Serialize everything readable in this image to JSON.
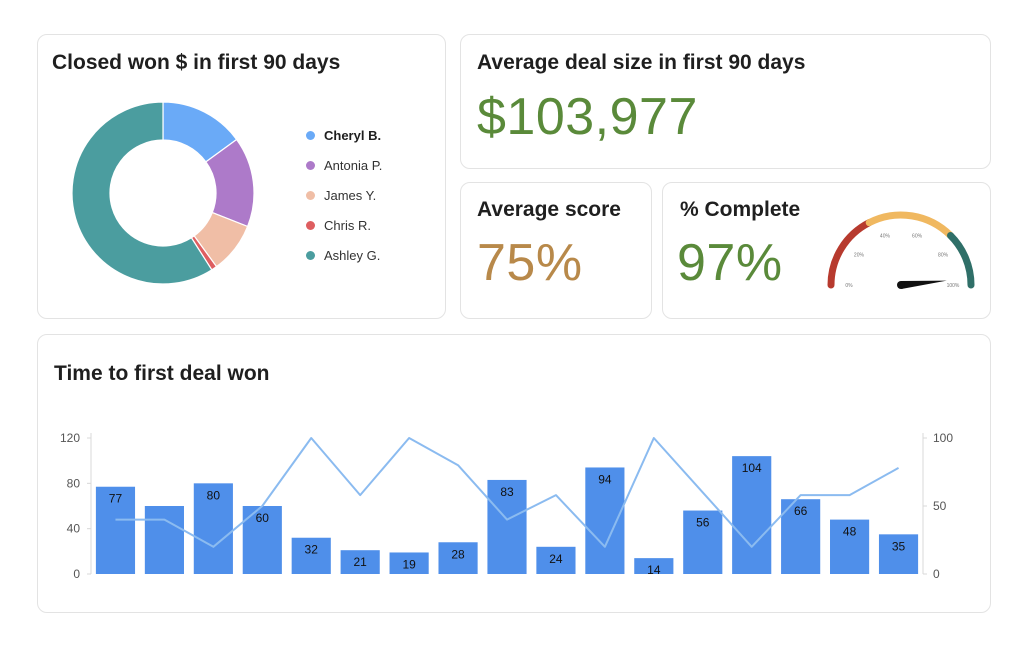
{
  "pie_card": {
    "title": "Closed won $ in first 90 days"
  },
  "avg_card": {
    "title": "Average deal size in first 90 days",
    "value": "$103,977",
    "color": "#5a8a3a"
  },
  "score_card": {
    "title": "Average score",
    "value": "75%",
    "color": "#b8894a"
  },
  "complete_card": {
    "title": "% Complete",
    "value": "97%",
    "color": "#5a8a3a",
    "gauge_labels": [
      "0%",
      "20%",
      "40%",
      "60%",
      "80%",
      "100%"
    ],
    "gauge_value": 97
  },
  "bars_card": {
    "title": "Time to first deal won"
  },
  "chart_data": [
    {
      "type": "pie",
      "variant": "donut",
      "labels": [
        "Cheryl B.",
        "Antonia P.",
        "James Y.",
        "Chris R.",
        "Ashley G."
      ],
      "values": [
        15,
        16,
        9,
        1,
        59
      ],
      "colors": [
        "#6aaaf7",
        "#ad7ac9",
        "#f0bea6",
        "#de5e60",
        "#4b9d9f"
      ],
      "highlighted": "Cheryl B.",
      "legend_position": "right"
    },
    {
      "type": "bar",
      "series": [
        {
          "name": "bars",
          "type": "bar",
          "axis": "left",
          "values": [
            77,
            60,
            80,
            60,
            32,
            21,
            19,
            28,
            83,
            24,
            94,
            14,
            56,
            104,
            66,
            48,
            35
          ],
          "labels": [
            "77",
            "",
            "80",
            "60",
            "32",
            "21",
            "19",
            "28",
            "83",
            "24",
            "94",
            "14",
            "56",
            "104",
            "66",
            "48",
            "35"
          ],
          "color": "#4f8fea"
        },
        {
          "name": "line",
          "type": "line",
          "axis": "right",
          "values": [
            40,
            40,
            20,
            50,
            100,
            58,
            100,
            80,
            40,
            58,
            20,
            100,
            60,
            20,
            58,
            58,
            78
          ],
          "color": "#8bbbf0"
        }
      ],
      "y_left": {
        "ticks": [
          0,
          40,
          80,
          120
        ],
        "ylim": [
          0,
          120
        ]
      },
      "y_right": {
        "ticks": [
          0,
          50,
          100
        ],
        "ylim": [
          0,
          100
        ]
      },
      "grid": false
    }
  ]
}
